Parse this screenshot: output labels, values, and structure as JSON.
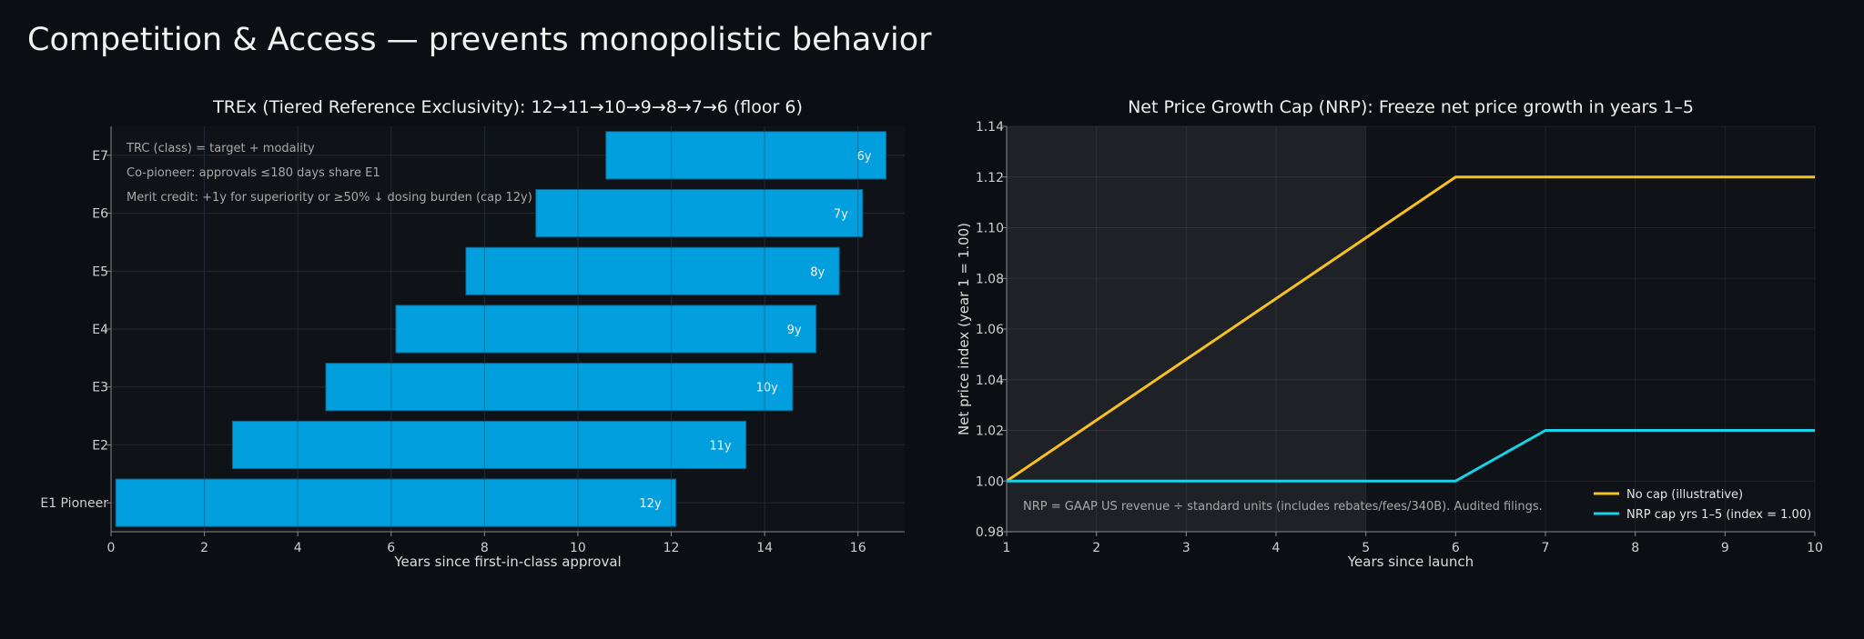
{
  "page": {
    "title": "Competition & Access — prevents monopolistic behavior"
  },
  "chart_data": [
    {
      "type": "bar",
      "orientation": "horizontal",
      "title": "TREx (Tiered Reference Exclusivity): 12→11→10→9→8→7→6 (floor 6)",
      "xlabel": "Years since first-in-class approval",
      "ylabel": "",
      "xlim": [
        0,
        17
      ],
      "xticks": [
        "0",
        "2",
        "4",
        "6",
        "8",
        "10",
        "12",
        "14",
        "16"
      ],
      "categories": [
        "E1 Pioneer",
        "E2",
        "E3",
        "E4",
        "E5",
        "E6",
        "E7"
      ],
      "starts": [
        0.1,
        2.6,
        4.6,
        6.1,
        7.6,
        9.1,
        10.6
      ],
      "ends": [
        12.1,
        13.6,
        14.6,
        15.1,
        15.6,
        16.1,
        16.6
      ],
      "bar_labels": [
        "12y",
        "11y",
        "10y",
        "9y",
        "8y",
        "7y",
        "6y"
      ],
      "annotations": [
        "TRC (class) = target + modality",
        "Co-pioneer: approvals ≤180 days share E1",
        "Merit credit: +1y for superiority or ≥50% ↓ dosing burden (cap 12y)"
      ],
      "grid": true,
      "bar_color": "#029fdf"
    },
    {
      "type": "line",
      "title": "Net Price Growth Cap (NRP): Freeze net price growth in years 1–5",
      "xlabel": "Years since launch",
      "ylabel": "Net price index (year 1 = 1.00)",
      "xlim": [
        1,
        10
      ],
      "ylim": [
        0.98,
        1.14
      ],
      "xticks": [
        "1",
        "2",
        "3",
        "4",
        "5",
        "6",
        "7",
        "8",
        "9",
        "10"
      ],
      "yticks": [
        "0.98",
        "1.00",
        "1.02",
        "1.04",
        "1.06",
        "1.08",
        "1.10",
        "1.12",
        "1.14"
      ],
      "shaded_region": [
        1,
        5
      ],
      "x": [
        1,
        2,
        3,
        4,
        5,
        6,
        7,
        8,
        9,
        10
      ],
      "series": [
        {
          "name": "No cap (illustrative)",
          "color": "#f7c11f",
          "values": [
            1.0,
            1.024,
            1.048,
            1.072,
            1.096,
            1.12,
            1.12,
            1.12,
            1.12,
            1.12
          ]
        },
        {
          "name": "NRP cap yrs 1–5 (index = 1.00)",
          "color": "#18d2e8",
          "values": [
            1.0,
            1.0,
            1.0,
            1.0,
            1.0,
            1.0,
            1.02,
            1.02,
            1.02,
            1.02
          ]
        }
      ],
      "annotation": "NRP = GAAP US revenue ÷ standard units (includes rebates/fees/340B). Audited filings.",
      "legend_position": "lower right",
      "grid": true
    }
  ]
}
